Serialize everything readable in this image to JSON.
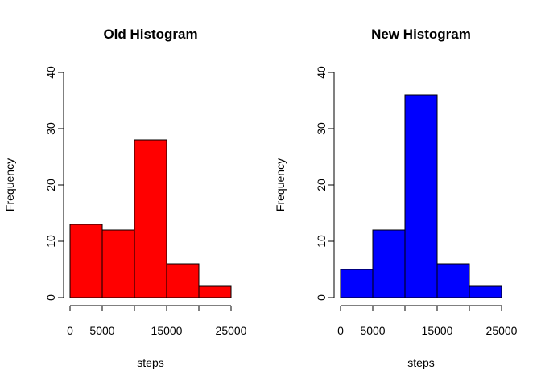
{
  "chart_data": [
    {
      "type": "bar",
      "title": "Old Histogram",
      "xlabel": "steps",
      "ylabel": "Frequency",
      "color": "#ff0000",
      "bin_edges": [
        0,
        5000,
        10000,
        15000,
        20000,
        25000
      ],
      "values": [
        13,
        12,
        28,
        6,
        2
      ],
      "xticks": [
        0,
        5000,
        10000,
        15000,
        20000,
        25000
      ],
      "xtick_labels": [
        "0",
        "5000",
        "",
        "15000",
        "",
        "25000"
      ],
      "yticks": [
        0,
        10,
        20,
        30,
        40
      ],
      "ytick_labels": [
        "0",
        "10",
        "20",
        "30",
        "40"
      ],
      "ylim": [
        0,
        40
      ],
      "xlim": [
        0,
        25000
      ]
    },
    {
      "type": "bar",
      "title": "New Histogram",
      "xlabel": "steps",
      "ylabel": "Frequency",
      "color": "#0000ff",
      "bin_edges": [
        0,
        5000,
        10000,
        15000,
        20000,
        25000
      ],
      "values": [
        5,
        12,
        36,
        6,
        2
      ],
      "xticks": [
        0,
        5000,
        10000,
        15000,
        20000,
        25000
      ],
      "xtick_labels": [
        "0",
        "5000",
        "",
        "15000",
        "",
        "25000"
      ],
      "yticks": [
        0,
        10,
        20,
        30,
        40
      ],
      "ytick_labels": [
        "0",
        "10",
        "20",
        "30",
        "40"
      ],
      "ylim": [
        0,
        40
      ],
      "xlim": [
        0,
        25000
      ]
    }
  ]
}
